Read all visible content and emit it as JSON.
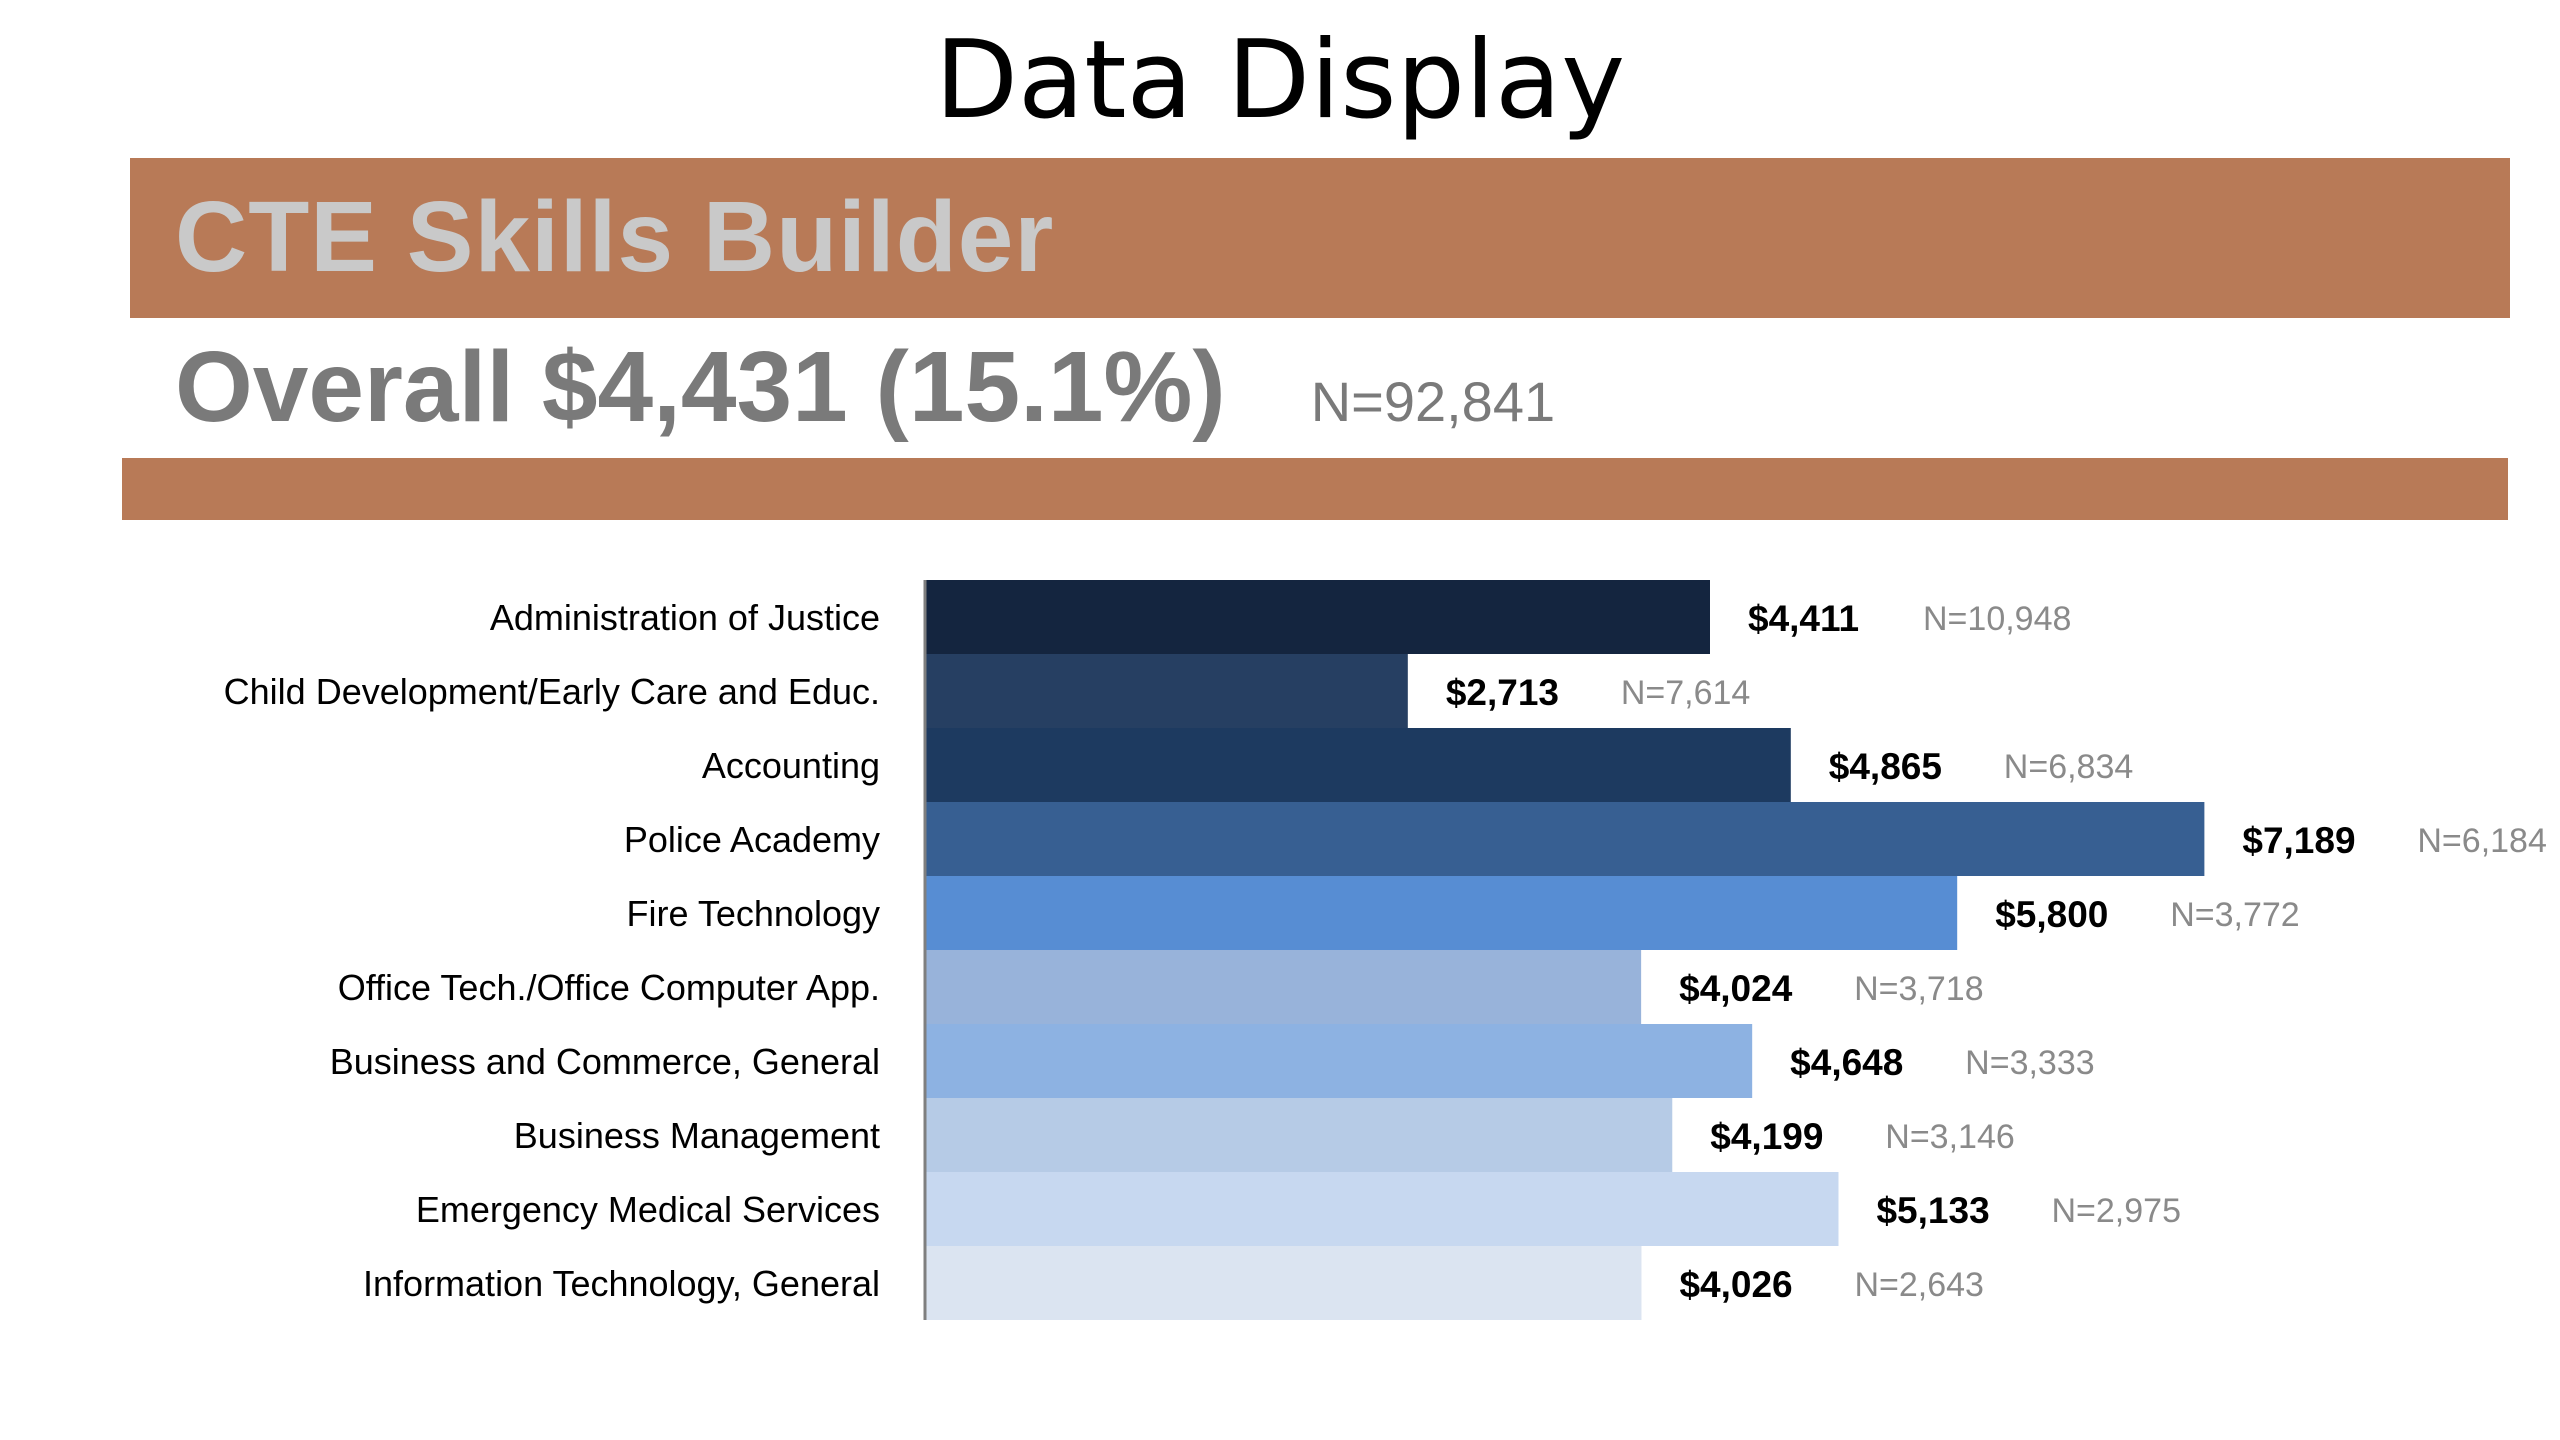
{
  "header": {
    "title": "Data Display",
    "banner": "CTE Skills Builder",
    "overall": "Overall $4,431 (15.1%)",
    "overall_n": "N=92,841"
  },
  "colors": {
    "banner": "#b87a57",
    "banner_text": "#c9c9c9",
    "overall_text": "#7a7a7a"
  },
  "chart_data": {
    "type": "bar",
    "orientation": "horizontal",
    "title": "",
    "xlabel": "",
    "ylabel": "",
    "xlim": [
      0,
      8000
    ],
    "grid": false,
    "categories": [
      "Administration of Justice",
      "Child Development/Early Care and Educ.",
      "Accounting",
      "Police Academy",
      "Fire Technology",
      "Office Tech./Office Computer App.",
      "Business and Commerce, General",
      "Business Management",
      "Emergency Medical Services",
      "Information Technology, General"
    ],
    "values": [
      4411,
      2713,
      4865,
      7189,
      5800,
      4024,
      4648,
      4199,
      5133,
      4026
    ],
    "value_labels": [
      "$4,411",
      "$2,713",
      "$4,865",
      "$7,189",
      "$5,800",
      "$4,024",
      "$4,648",
      "$4,199",
      "$5,133",
      "$4,026"
    ],
    "n_labels": [
      "N=10,948",
      "N=7,614",
      "N=6,834",
      "N=6,184",
      "N=3,772",
      "N=3,718",
      "N=3,333",
      "N=3,146",
      "N=2,975",
      "N=2,643"
    ],
    "colors": [
      "#14253f",
      "#263f62",
      "#1d3a60",
      "#375f92",
      "#578dd3",
      "#98b3da",
      "#8db2e2",
      "#b6cbe6",
      "#c7d8f0",
      "#dbe4f1"
    ]
  }
}
